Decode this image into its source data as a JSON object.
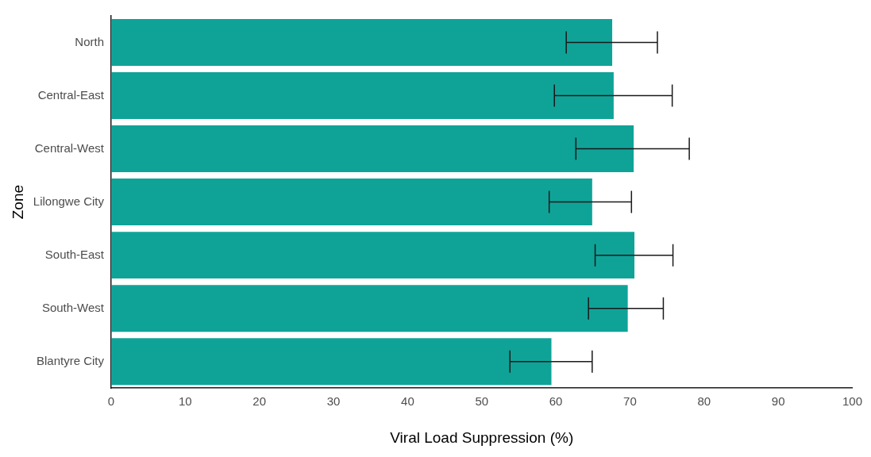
{
  "chart_data": {
    "type": "bar",
    "orientation": "horizontal",
    "xlabel": "Viral Load Suppression (%)",
    "ylabel": "Zone",
    "categories": [
      "North",
      "Central-East",
      "Central-West",
      "Lilongwe City",
      "South-East",
      "South-West",
      "Blantyre City"
    ],
    "values": [
      67.6,
      67.8,
      70.5,
      64.9,
      70.6,
      69.7,
      59.4
    ],
    "errors": [
      [
        61.4,
        73.7
      ],
      [
        59.8,
        75.7
      ],
      [
        62.7,
        78.0
      ],
      [
        59.1,
        70.2
      ],
      [
        65.3,
        75.8
      ],
      [
        64.4,
        74.5
      ],
      [
        53.8,
        64.9
      ]
    ],
    "color": "#0fa398",
    "xlim": [
      0,
      100
    ],
    "xticks": [
      0,
      10,
      20,
      30,
      40,
      50,
      60,
      70,
      80,
      90,
      100
    ],
    "grid": false,
    "legend": false
  }
}
